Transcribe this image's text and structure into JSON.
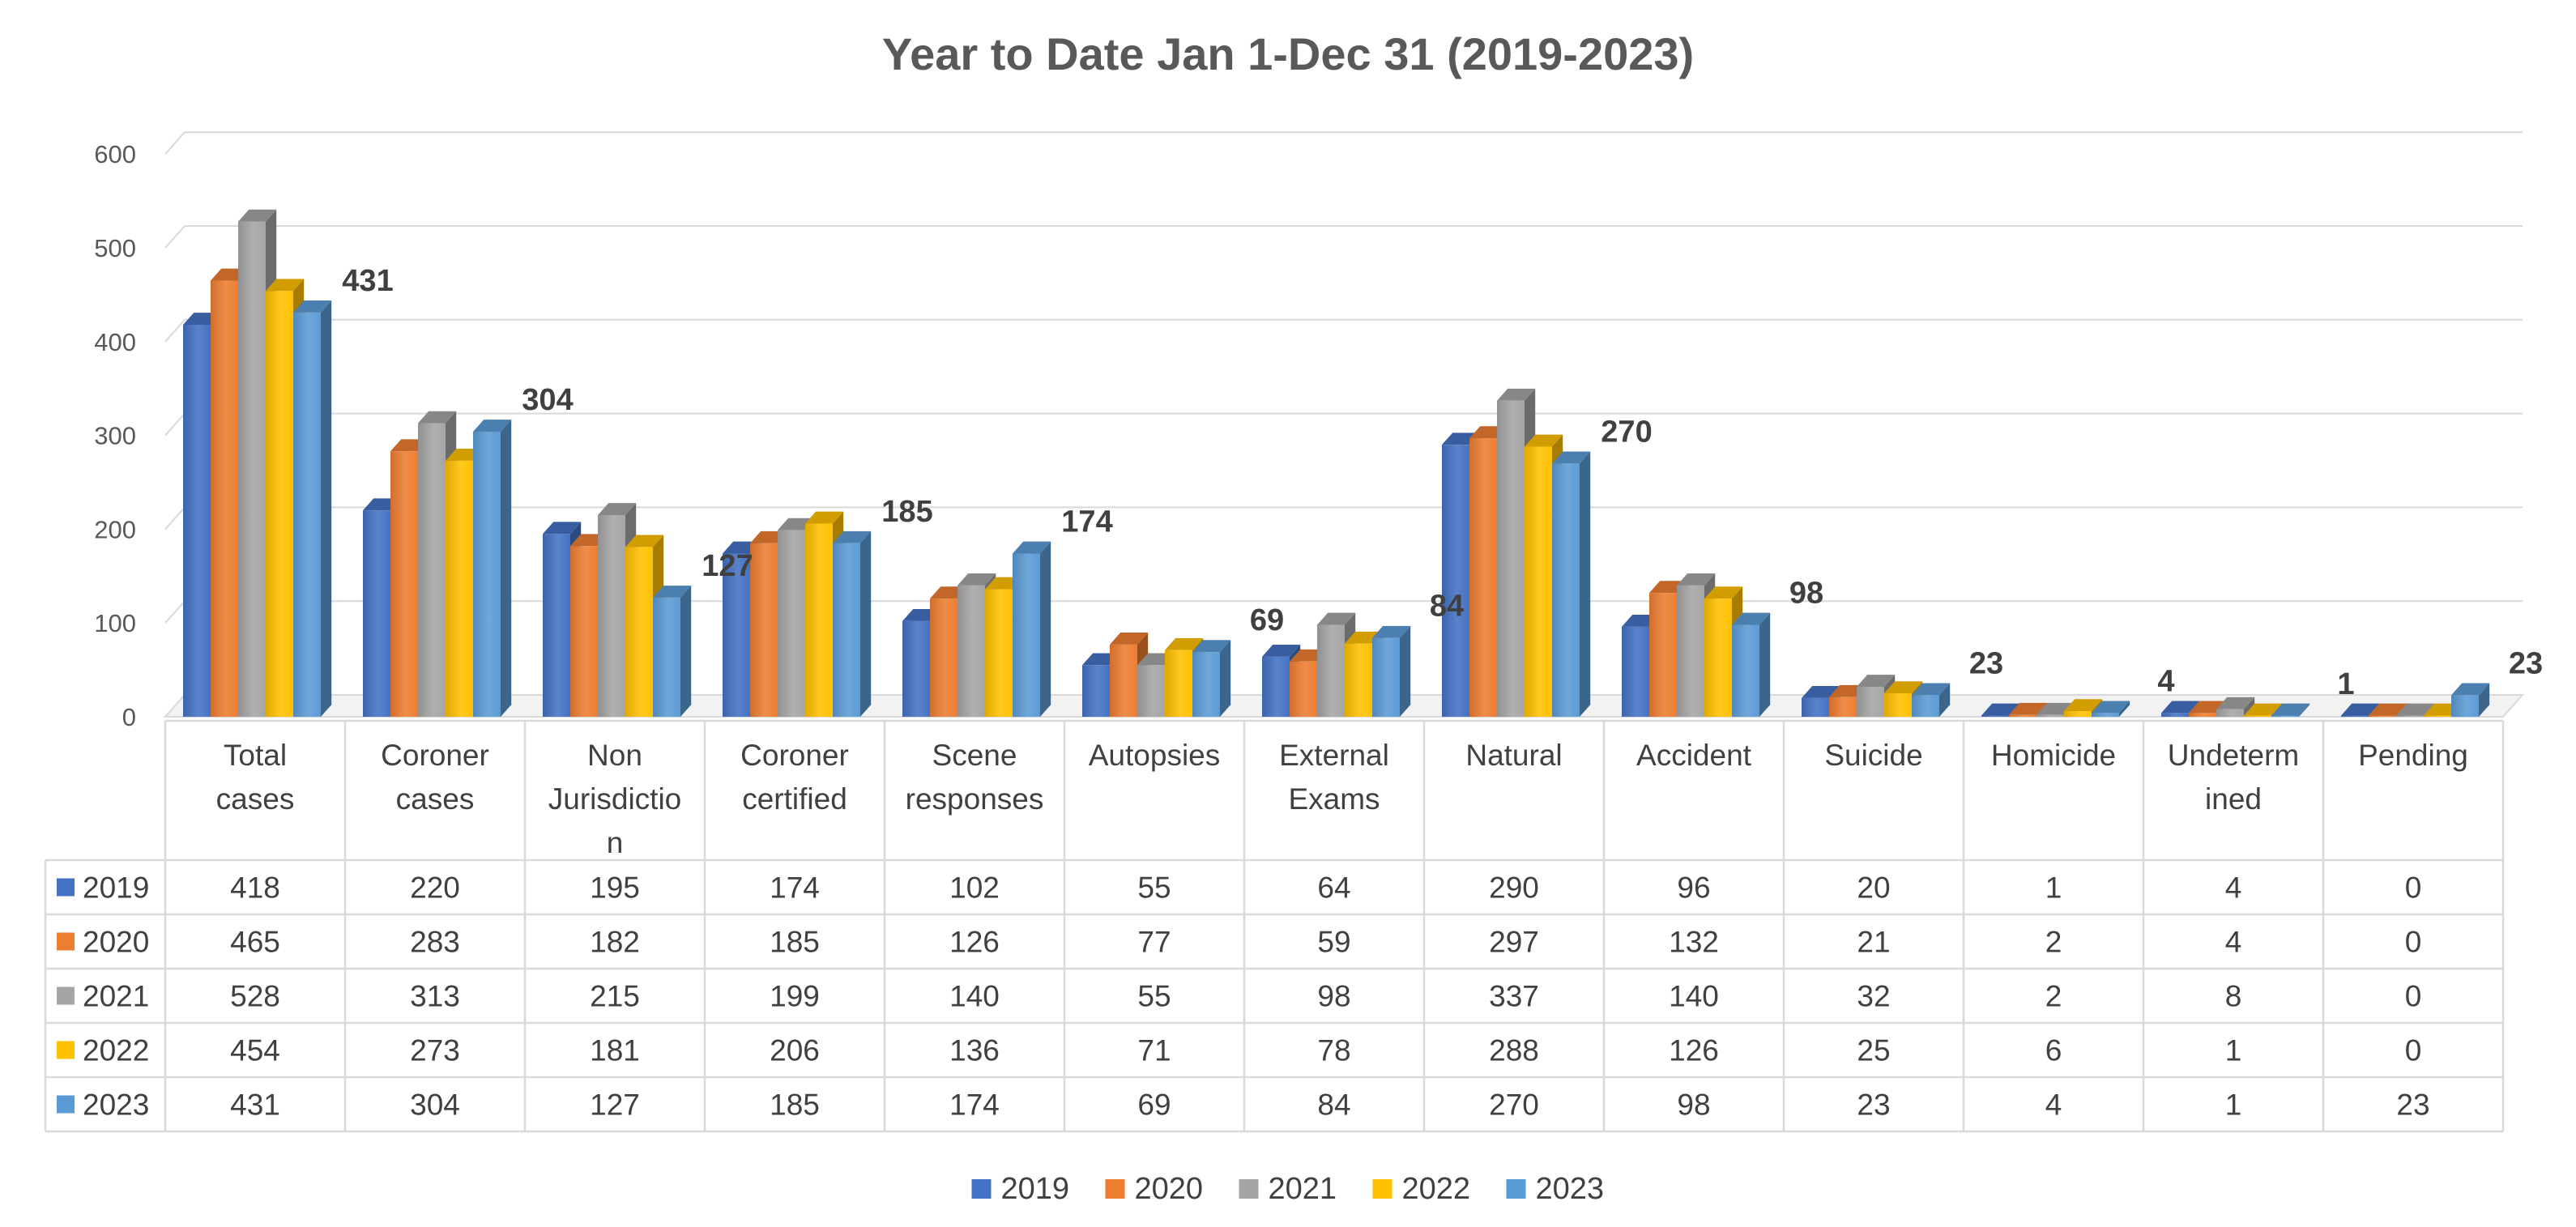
{
  "chart_data": {
    "type": "bar",
    "title": "Year to Date Jan 1-Dec 31 (2019-2023)",
    "categories": [
      "Total cases",
      "Coroner cases",
      "Non Jurisdiction",
      "Coroner certified",
      "Scene responses",
      "Autopsies",
      "External Exams",
      "Natural",
      "Accident",
      "Suicide",
      "Homicide",
      "Undetermined",
      "Pending"
    ],
    "category_label_lines": [
      [
        "Total",
        "cases"
      ],
      [
        "Coroner",
        "cases"
      ],
      [
        "Non",
        "Jurisdictio",
        "n"
      ],
      [
        "Coroner",
        "certified"
      ],
      [
        "Scene",
        "responses"
      ],
      [
        "Autopsies"
      ],
      [
        "External",
        "Exams"
      ],
      [
        "Natural"
      ],
      [
        "Accident"
      ],
      [
        "Suicide"
      ],
      [
        "Homicide"
      ],
      [
        "Undeterm",
        "ined"
      ],
      [
        "Pending"
      ]
    ],
    "series": [
      {
        "name": "2019",
        "color": "#4472C4",
        "values": [
          418,
          220,
          195,
          174,
          102,
          55,
          64,
          290,
          96,
          20,
          1,
          4,
          0
        ]
      },
      {
        "name": "2020",
        "color": "#ED7D31",
        "values": [
          465,
          283,
          182,
          185,
          126,
          77,
          59,
          297,
          132,
          21,
          2,
          4,
          0
        ]
      },
      {
        "name": "2021",
        "color": "#A5A5A5",
        "values": [
          528,
          313,
          215,
          199,
          140,
          55,
          98,
          337,
          140,
          32,
          2,
          8,
          0
        ]
      },
      {
        "name": "2022",
        "color": "#FFC000",
        "values": [
          454,
          273,
          181,
          206,
          136,
          71,
          78,
          288,
          126,
          25,
          6,
          1,
          0
        ]
      },
      {
        "name": "2023",
        "color": "#5B9BD5",
        "values": [
          431,
          304,
          127,
          185,
          174,
          69,
          84,
          270,
          98,
          23,
          4,
          1,
          23
        ]
      }
    ],
    "labeled_series": "2023",
    "ylim": [
      0,
      600
    ],
    "yticks": [
      0,
      100,
      200,
      300,
      400,
      500,
      600
    ],
    "grid": true,
    "legend": "bottom",
    "data_table": true,
    "style": "3d-clustered-column"
  }
}
